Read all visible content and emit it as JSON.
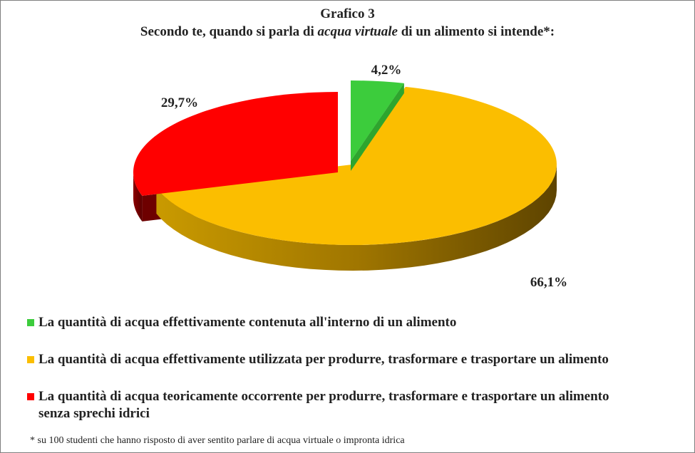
{
  "title": "Grafico 3",
  "subtitle": {
    "part1": "Secondo te, quando  si parla  di ",
    "italic": "acqua virtuale",
    "part2": " di un  alimento  si intende*:"
  },
  "chart_data": {
    "type": "pie",
    "style": "3d-exploded",
    "categories": [
      "La quantità di acqua effettivamente contenuta all'interno di un alimento",
      "La quantità di acqua effettivamente utilizzata per produrre, trasformare e trasportare un alimento",
      "La quantità di acqua teoricamente occorrente per produrre, trasformare e trasportare un alimento senza sprechi idrici"
    ],
    "values": [
      4.2,
      66.1,
      29.7
    ],
    "data_labels": [
      "4,2%",
      "66,1%",
      "29,7%"
    ],
    "colors": [
      "#3ccc3c",
      "#fbbe00",
      "#ff0000"
    ],
    "legend_position": "bottom"
  },
  "legend": [
    {
      "line1": "La quantità di acqua effettivamente contenuta all'interno di un alimento",
      "line2": ""
    },
    {
      "line1": "La quantità di acqua effettivamente utilizzata per produrre, trasformare e trasportare un alimento",
      "line2": ""
    },
    {
      "line1": "La quantità di acqua teoricamente occorrente per produrre, trasformare e trasportare un alimento",
      "line2": "senza sprechi idrici"
    }
  ],
  "footnote": "* su 100 studenti che hanno risposto di aver sentito parlare di acqua virtuale  o impronta idrica"
}
